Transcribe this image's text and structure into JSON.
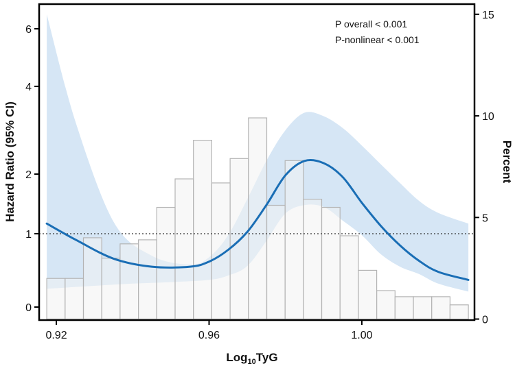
{
  "chart_data": {
    "type": "bar+line",
    "title": "",
    "xlabel_main": "Log",
    "xlabel_sub": "10",
    "xlabel_end": "TyG",
    "ylabel_left": "Hazard Ratio (95% CI)",
    "ylabel_right": "Percent",
    "x_ticks": [
      "0.92",
      "0.96",
      "1.00"
    ],
    "x_tick_values": [
      0.92,
      0.96,
      1.0
    ],
    "xlim": [
      0.9155,
      1.0295
    ],
    "left_ticks": [
      "0",
      "1",
      "2",
      "4",
      "6"
    ],
    "left_tick_values": [
      0,
      1,
      2,
      4,
      6
    ],
    "right_ticks": [
      "0",
      "5",
      "10",
      "15"
    ],
    "right_tick_values": [
      0,
      5,
      10,
      15
    ],
    "right_ylim": [
      -0.05,
      15.5
    ],
    "reference_line_hr": 1,
    "annotations": [
      "P overall < 0.001",
      "P-nonlinear < 0.001"
    ],
    "histogram": {
      "bin_width": 0.0048,
      "bin_starts": [
        0.9175,
        0.9223,
        0.9271,
        0.9319,
        0.9367,
        0.9415,
        0.9463,
        0.9511,
        0.9559,
        0.9607,
        0.9655,
        0.9703,
        0.9751,
        0.9799,
        0.9847,
        0.9895,
        0.9943,
        0.9991,
        1.0039,
        1.0087,
        1.0135,
        1.0183,
        1.0231
      ],
      "percent": [
        2.0,
        2.0,
        4.0,
        3.0,
        3.7,
        3.9,
        5.5,
        6.9,
        8.8,
        6.7,
        7.9,
        9.9,
        5.6,
        7.8,
        5.9,
        5.5,
        4.1,
        2.4,
        1.4,
        1.1,
        1.1,
        1.1,
        0.7
      ]
    },
    "series": [
      {
        "name": "HR",
        "x": [
          0.9175,
          0.925,
          0.935,
          0.945,
          0.955,
          0.96,
          0.965,
          0.97,
          0.975,
          0.98,
          0.985,
          0.99,
          0.995,
          1.0,
          1.005,
          1.01,
          1.015,
          1.02,
          1.0279
        ],
        "y": [
          1.17,
          0.92,
          0.66,
          0.55,
          0.55,
          0.62,
          0.78,
          1.03,
          1.48,
          1.98,
          2.3,
          2.25,
          1.95,
          1.52,
          1.13,
          0.84,
          0.63,
          0.48,
          0.37
        ]
      },
      {
        "name": "Lower 95% CI",
        "x": [
          0.9175,
          0.93,
          0.94,
          0.95,
          0.96,
          0.965,
          0.97,
          0.975,
          0.98,
          0.985,
          0.99,
          0.995,
          1.0,
          1.005,
          1.01,
          1.015,
          1.02,
          1.0279
        ],
        "y": [
          0.25,
          0.29,
          0.32,
          0.34,
          0.37,
          0.43,
          0.56,
          0.9,
          1.34,
          1.48,
          1.45,
          1.22,
          0.98,
          0.72,
          0.55,
          0.45,
          0.32,
          0.21
        ]
      },
      {
        "name": "Upper 95% CI",
        "x": [
          0.9175,
          0.925,
          0.935,
          0.945,
          0.955,
          0.96,
          0.965,
          0.97,
          0.975,
          0.98,
          0.985,
          0.99,
          0.995,
          1.0,
          1.005,
          1.01,
          1.015,
          1.02,
          1.0279
        ],
        "y": [
          6.5,
          3.2,
          1.2,
          0.7,
          0.58,
          0.68,
          0.98,
          1.58,
          2.3,
          3.0,
          3.4,
          3.32,
          3.05,
          2.65,
          2.22,
          1.85,
          1.55,
          1.35,
          1.17
        ]
      }
    ],
    "colors": {
      "line": "#1a6eb5",
      "band": "#d6e6f5",
      "bar_fill": "#f3f3f3",
      "bar_stroke": "#b4b4b4",
      "axis": "#000000",
      "reference_line": "#333333"
    }
  }
}
